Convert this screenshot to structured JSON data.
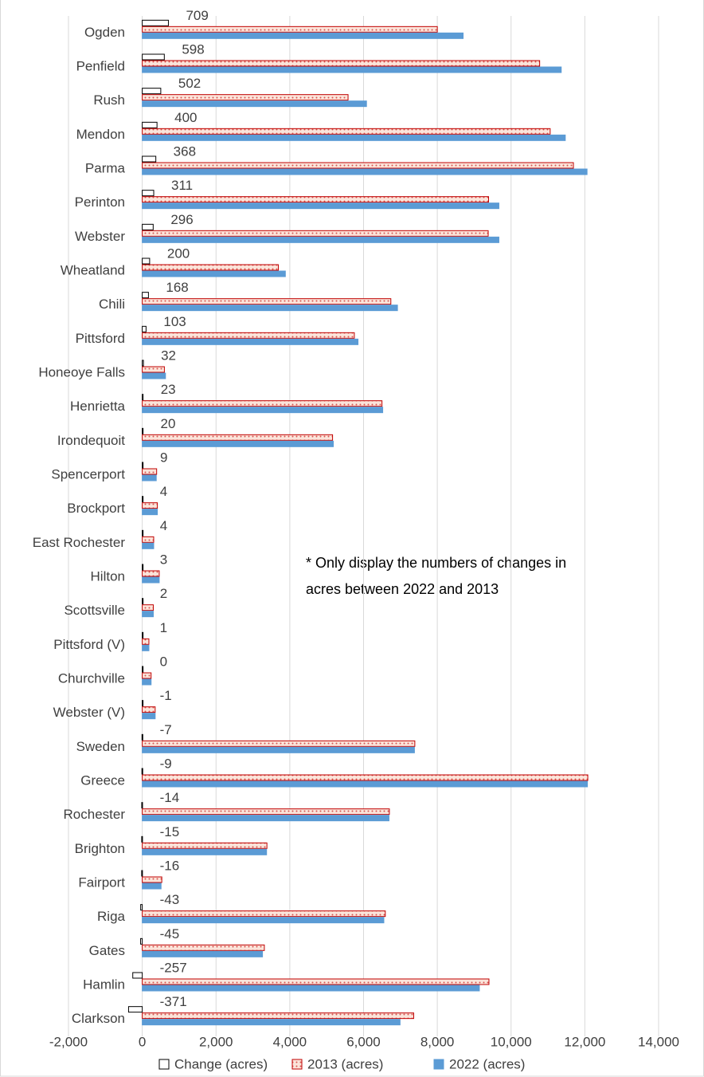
{
  "chart_data": {
    "type": "barh",
    "categories": [
      "Ogden",
      "Penfield",
      "Rush",
      "Mendon",
      "Parma",
      "Perinton",
      "Webster",
      "Wheatland",
      "Chili",
      "Pittsford",
      "Honeoye Falls",
      "Henrietta",
      "Irondequoit",
      "Spencerport",
      "Brockport",
      "East Rochester",
      "Hilton",
      "Scottsville",
      "Pittsford (V)",
      "Churchville",
      "Webster (V)",
      "Sweden",
      "Greece",
      "Rochester",
      "Brighton",
      "Fairport",
      "Riga",
      "Gates",
      "Hamlin",
      "Clarkson"
    ],
    "series": [
      {
        "name": "Change (acres)",
        "color": "#ffffff",
        "edgecolor": "#000000",
        "data_labels": true,
        "values": [
          709,
          598,
          502,
          400,
          368,
          311,
          296,
          200,
          168,
          103,
          32,
          23,
          20,
          9,
          4,
          4,
          3,
          2,
          1,
          0,
          -1,
          -7,
          -9,
          -14,
          -15,
          -16,
          -43,
          -45,
          -257,
          -371
        ]
      },
      {
        "name": "2013 (acres)",
        "color": "#f8d7c8",
        "edgecolor": "#c00000",
        "pattern": "dots",
        "values": [
          8000,
          10775,
          5580,
          11060,
          11690,
          9390,
          9380,
          3690,
          6740,
          5750,
          600,
          6500,
          5160,
          390,
          410,
          310,
          460,
          300,
          180,
          240,
          350,
          7390,
          12080,
          6700,
          3380,
          530,
          6590,
          3310,
          9400,
          7360
        ]
      },
      {
        "name": "2022 (acres)",
        "color": "#5b9bd5",
        "edgecolor": "#5b9bd5",
        "values": [
          8700,
          11360,
          6080,
          11470,
          12060,
          9670,
          9670,
          3880,
          6920,
          5850,
          630,
          6520,
          5180,
          380,
          410,
          310,
          460,
          300,
          180,
          240,
          350,
          7380,
          12070,
          6690,
          3370,
          510,
          6550,
          3260,
          9140,
          6990
        ]
      }
    ],
    "xlim": [
      -2000,
      14000
    ],
    "xticks": [
      {
        "value": -2000,
        "label": "-2,000"
      },
      0,
      {
        "value": 2000,
        "label": "2,000"
      },
      {
        "value": 4000,
        "label": "4,000"
      },
      {
        "value": 6000,
        "label": "6,000"
      },
      {
        "value": 8000,
        "label": "8,000"
      },
      {
        "value": 10000,
        "label": "10,000"
      },
      {
        "value": 12000,
        "label": "12,000"
      },
      {
        "value": 14000,
        "label": "14,000"
      }
    ],
    "grid": true,
    "legend": "bottom",
    "annotation": [
      "* Only display the numbers of changes in",
      "acres between 2022 and 2013"
    ]
  }
}
